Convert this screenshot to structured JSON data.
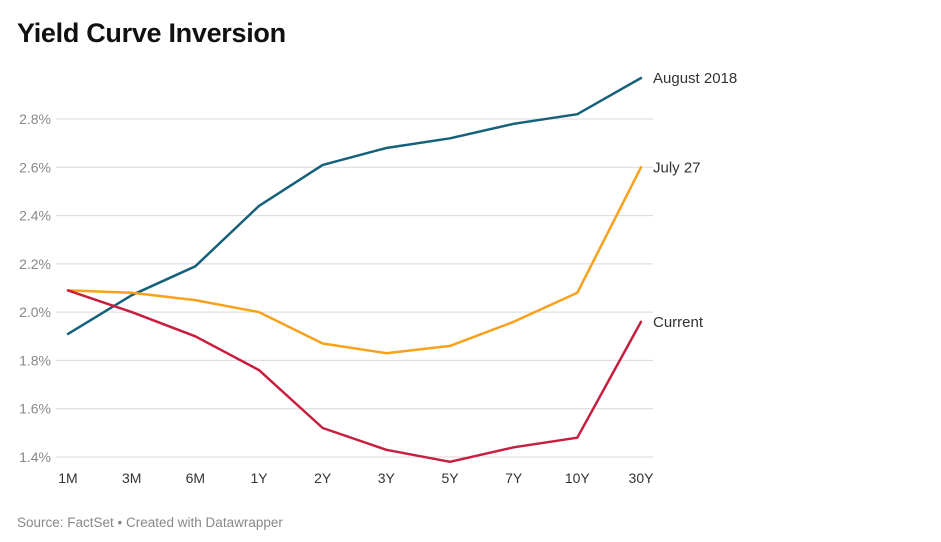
{
  "chart_data": {
    "type": "line",
    "title": "Yield Curve Inversion",
    "xlabel": "",
    "ylabel": "",
    "categories": [
      "1M",
      "3M",
      "6M",
      "1Y",
      "2Y",
      "3Y",
      "5Y",
      "7Y",
      "10Y",
      "30Y"
    ],
    "yticks": [
      1.4,
      1.6,
      1.8,
      2.0,
      2.2,
      2.4,
      2.6,
      2.8
    ],
    "ytick_labels": [
      "1.4%",
      "1.6%",
      "1.8%",
      "2.0%",
      "2.2%",
      "2.4%",
      "2.6%",
      "2.8%"
    ],
    "ylim": [
      1.4,
      2.8
    ],
    "grid": true,
    "legend": "direct labels at right end of each line",
    "series": [
      {
        "name": "August 2018",
        "color": "#15607a",
        "values": [
          1.91,
          2.07,
          2.19,
          2.44,
          2.61,
          2.68,
          2.72,
          2.78,
          2.82,
          2.97
        ]
      },
      {
        "name": "July 27",
        "color": "#f9a11b",
        "values": [
          2.09,
          2.08,
          2.05,
          2.0,
          1.87,
          1.83,
          1.86,
          1.96,
          2.08,
          2.6
        ]
      },
      {
        "name": "Current",
        "color": "#c71e3f",
        "values": [
          2.09,
          2.0,
          1.9,
          1.76,
          1.52,
          1.43,
          1.38,
          1.44,
          1.48,
          1.96
        ]
      }
    ]
  },
  "footer": "Source: FactSet • Created with Datawrapper"
}
